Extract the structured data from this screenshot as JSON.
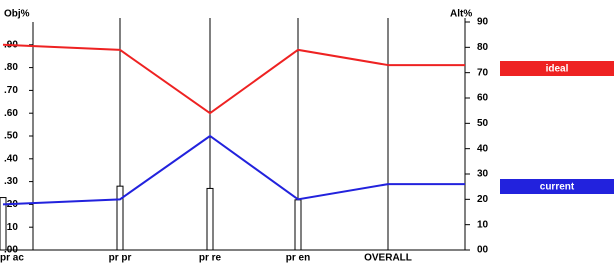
{
  "chart_data": {
    "type": "line",
    "y_label": "Obj%",
    "y2_label": "Alt%",
    "categories": [
      "pr ac",
      "pr pr",
      "pr re",
      "pr en",
      "OVERALL"
    ],
    "bars": {
      "color": "#000000",
      "values": [
        0.23,
        0.28,
        0.27,
        0.22,
        null
      ]
    },
    "series": [
      {
        "name": "ideal",
        "color": "#ee2222",
        "axis": "y2",
        "values": [
          81,
          79,
          54,
          79,
          73
        ]
      },
      {
        "name": "current",
        "color": "#2222dd",
        "axis": "y2",
        "values": [
          18,
          20,
          45,
          20,
          26
        ]
      }
    ],
    "ylim": [
      0,
      1
    ],
    "yticks": [
      {
        "value": 0,
        "label": ".00"
      },
      {
        "value": 0.1,
        "label": ".10"
      },
      {
        "value": 0.2,
        "label": ".20"
      },
      {
        "value": 0.3,
        "label": ".30"
      },
      {
        "value": 0.4,
        "label": ".40"
      },
      {
        "value": 0.5,
        "label": ".50"
      },
      {
        "value": 0.6,
        "label": ".60"
      },
      {
        "value": 0.7,
        "label": ".70"
      },
      {
        "value": 0.8,
        "label": ".80"
      },
      {
        "value": 0.9,
        "label": ".90"
      }
    ],
    "y2lim": [
      0,
      90
    ],
    "y2ticks": [
      {
        "value": 0,
        "label": "00"
      },
      10,
      20,
      30,
      40,
      50,
      60,
      70,
      80,
      90
    ]
  }
}
